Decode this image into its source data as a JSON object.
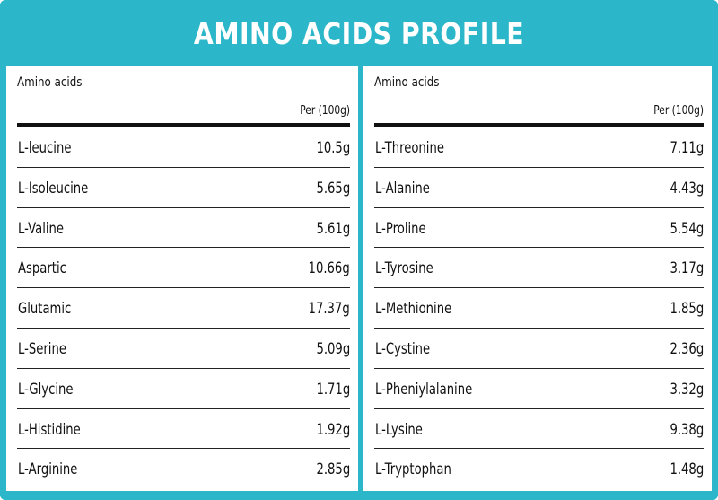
{
  "title": "AMINO ACIDS PROFILE",
  "colors": {
    "accent": "#2bb7c9",
    "text": "#111111",
    "background": "#ffffff"
  },
  "left": {
    "header_label": "Amino acids",
    "per_label": "Per (100g)",
    "rows": [
      {
        "name": "L-leucine",
        "value": "10.5g"
      },
      {
        "name": "L-Isoleucine",
        "value": "5.65g"
      },
      {
        "name": "L-Valine",
        "value": "5.61g"
      },
      {
        "name": "Aspartic",
        "value": "10.66g"
      },
      {
        "name": "Glutamic",
        "value": "17.37g"
      },
      {
        "name": "L-Serine",
        "value": "5.09g"
      },
      {
        "name": "L-Glycine",
        "value": "1.71g"
      },
      {
        "name": "L-Histidine",
        "value": "1.92g"
      },
      {
        "name": "L-Arginine",
        "value": "2.85g"
      }
    ]
  },
  "right": {
    "header_label": "Amino acids",
    "per_label": "Per (100g)",
    "rows": [
      {
        "name": "L-Threonine",
        "value": "7.11g"
      },
      {
        "name": "L-Alanine",
        "value": "4.43g"
      },
      {
        "name": "L-Proline",
        "value": "5.54g"
      },
      {
        "name": "L-Tyrosine",
        "value": "3.17g"
      },
      {
        "name": "L-Methionine",
        "value": "1.85g"
      },
      {
        "name": "L-Cystine",
        "value": "2.36g"
      },
      {
        "name": "L-Pheniylalanine",
        "value": "3.32g"
      },
      {
        "name": "L-Lysine",
        "value": "9.38g"
      },
      {
        "name": "L-Tryptophan",
        "value": "1.48g"
      }
    ]
  }
}
